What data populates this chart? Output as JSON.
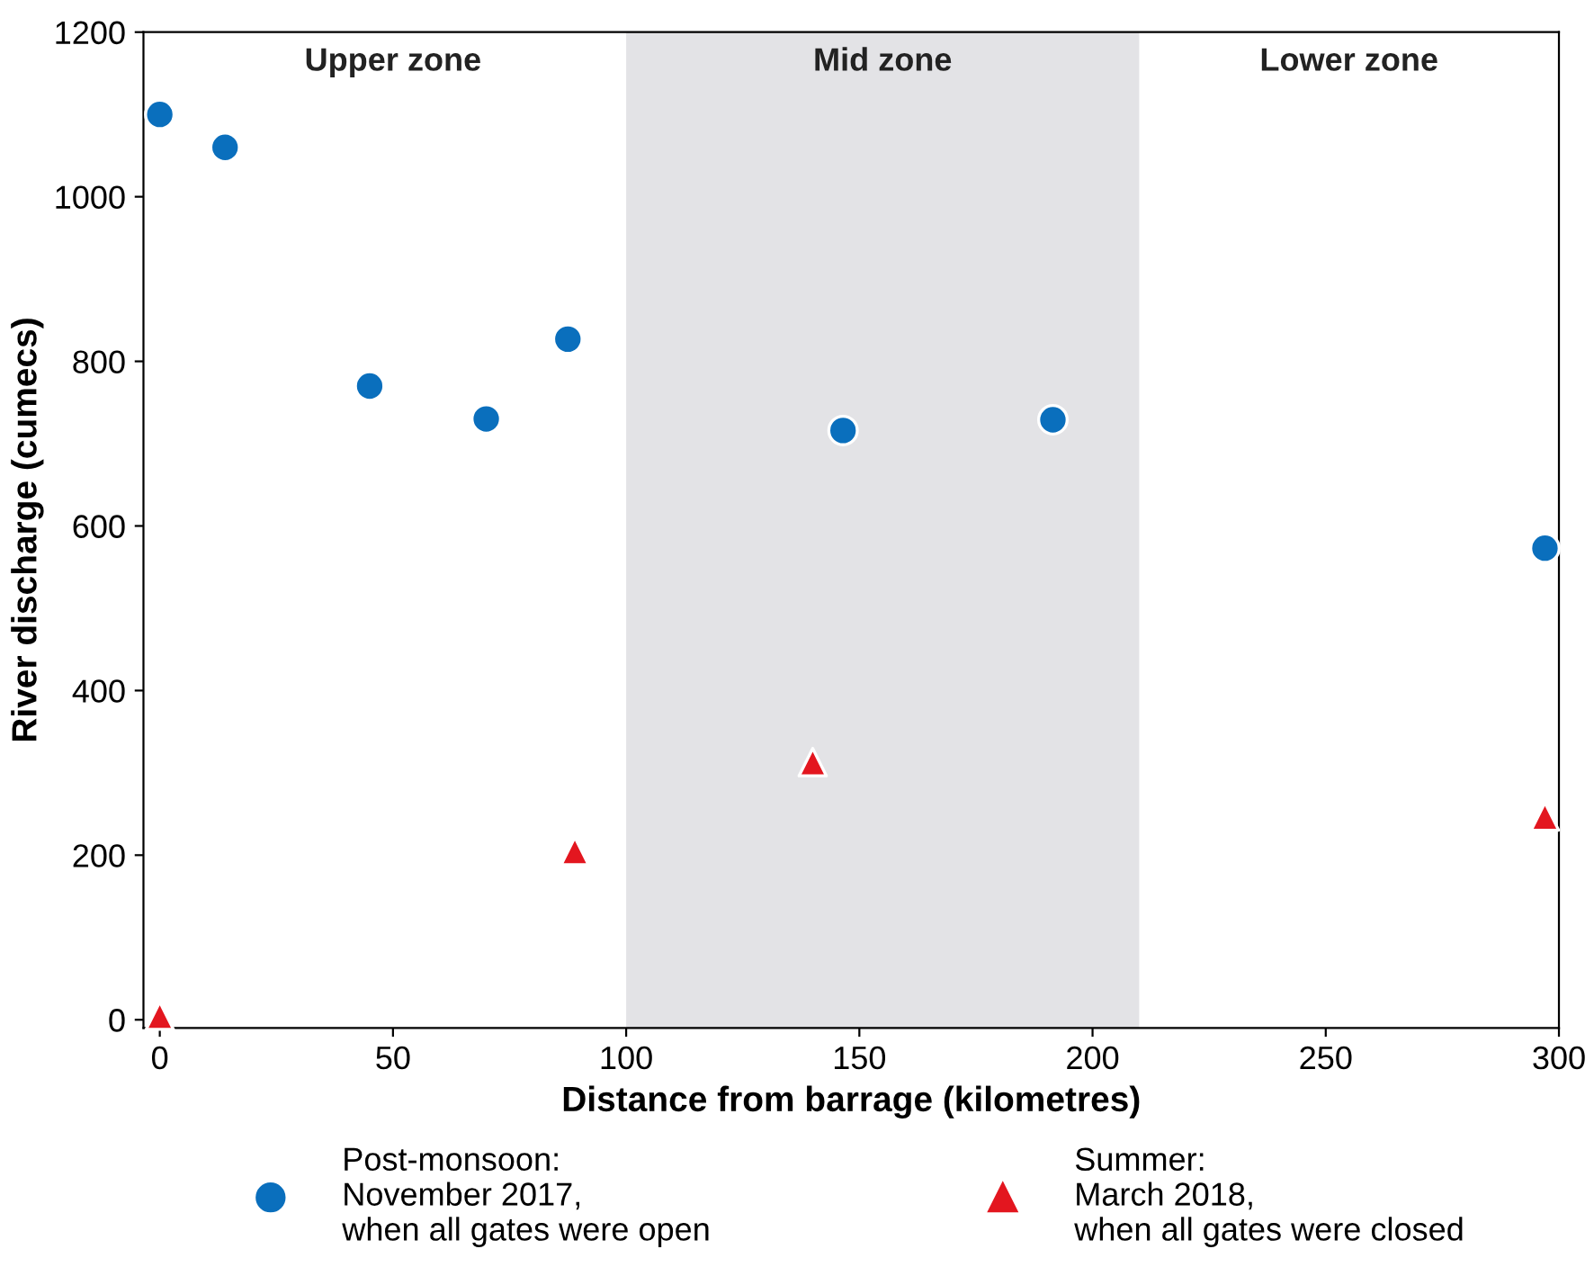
{
  "chart_data": {
    "type": "scatter",
    "xlabel": "Distance from barrage (kilometres)",
    "ylabel": "River discharge (cumecs)",
    "xlim": [
      -3.5,
      300
    ],
    "xticks": [
      0,
      50,
      100,
      150,
      200,
      250,
      300
    ],
    "ylim": [
      -10,
      1200
    ],
    "yticks": [
      0,
      200,
      400,
      600,
      800,
      1000,
      1200
    ],
    "grid": false,
    "legend": "bottom",
    "bands": [
      {
        "axis": "x",
        "from": 100,
        "to": 210,
        "label": "Mid zone",
        "color": "#e3e3e6"
      }
    ],
    "annotations": [
      "Upper zone",
      "Lower zone"
    ],
    "series": [
      {
        "name": "Post-monsoon:\nNovember 2017,\nwhen all gates were open",
        "color": "#0a6fbd",
        "marker": "circle",
        "x": [
          0,
          14,
          45,
          70,
          87.5,
          146.5,
          191.5,
          297
        ],
        "values": [
          1100,
          1060,
          770,
          730,
          827,
          716,
          729,
          573
        ]
      },
      {
        "name": "Summer:\nMarch 2018,\nwhen all gates were closed",
        "color": "#e3161f",
        "marker": "triangle",
        "x": [
          0,
          89,
          140,
          297
        ],
        "values": [
          5,
          205,
          313,
          247
        ]
      }
    ]
  }
}
